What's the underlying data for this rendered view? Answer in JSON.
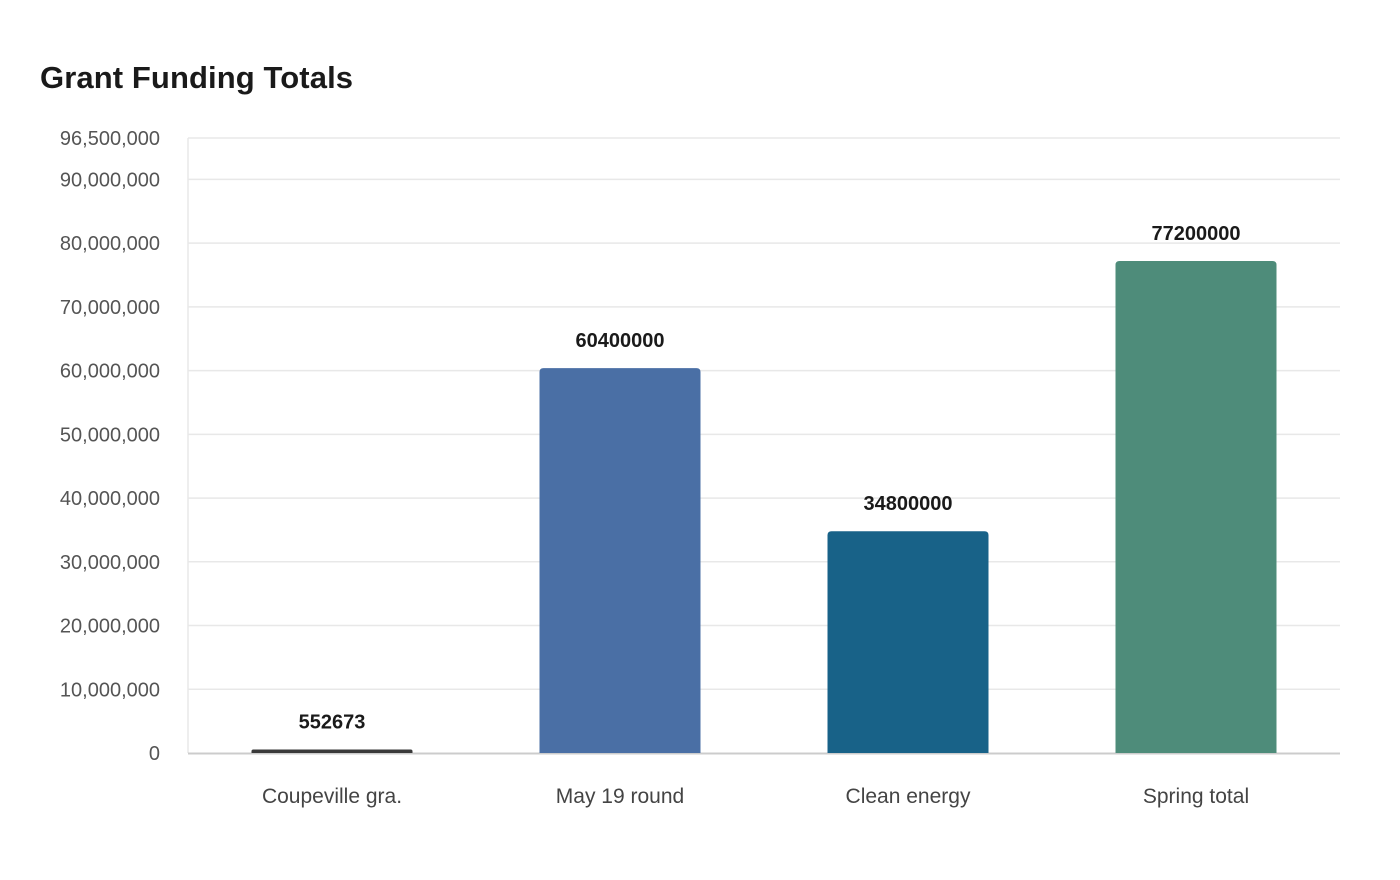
{
  "chart_data": {
    "type": "bar",
    "title": "Grant Funding Totals",
    "xlabel": "",
    "ylabel": "",
    "categories": [
      "Coupeville gra.",
      "May 19 round",
      "Clean energy",
      "Spring total"
    ],
    "values": [
      552673,
      60400000,
      34800000,
      77200000
    ],
    "value_labels": [
      "552673",
      "60400000",
      "34800000",
      "77200000"
    ],
    "bar_colors": [
      "#3a3a3a",
      "#4a6fa5",
      "#186288",
      "#4e8c7a"
    ],
    "ylim": [
      0,
      96500000
    ],
    "yticks": [
      0,
      10000000,
      20000000,
      30000000,
      40000000,
      50000000,
      60000000,
      70000000,
      80000000,
      90000000,
      96500000
    ],
    "ytick_labels": [
      "0",
      "10,000,000",
      "20,000,000",
      "30,000,000",
      "40,000,000",
      "50,000,000",
      "60,000,000",
      "70,000,000",
      "80,000,000",
      "90,000,000",
      "96,500,000"
    ],
    "grid": true,
    "legend": "none",
    "colors": {
      "grid": "#e8e8e8",
      "axis": "#cccccc",
      "text": "#1a1a1a",
      "tick_text": "#555555"
    }
  }
}
